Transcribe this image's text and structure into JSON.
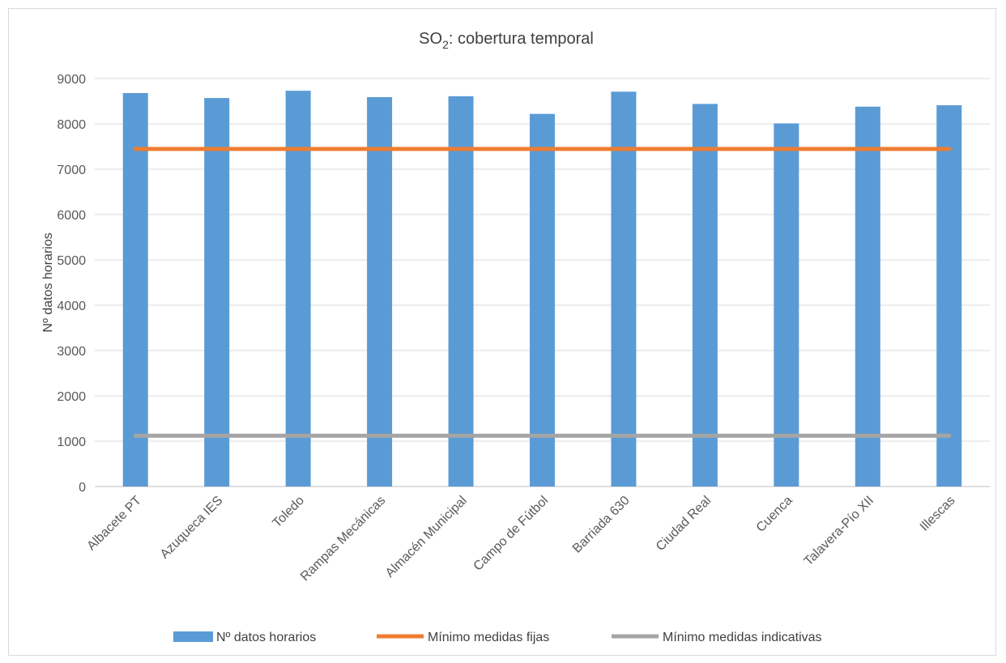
{
  "chart_data": {
    "type": "bar",
    "title": "SO",
    "title_subscript": "2",
    "title_suffix": ": cobertura temporal",
    "xlabel": "",
    "ylabel": "Nº datos horarios",
    "ylim": [
      0,
      9000
    ],
    "yticks": [
      0,
      1000,
      2000,
      3000,
      4000,
      5000,
      6000,
      7000,
      8000,
      9000
    ],
    "grid": true,
    "legend_position": "bottom",
    "categories": [
      "Albacete PT",
      "Azuqueca IES",
      "Toledo",
      "Rampas Mecánicas",
      "Almacén Municipal",
      "Campo de Fútbol",
      "Barriada 630",
      "Ciudad Real",
      "Cuenca",
      "Talavera-Pío XII",
      "Illescas"
    ],
    "series": [
      {
        "name": "Nº datos horarios",
        "kind": "bar",
        "color": "#5b9bd5",
        "values": [
          8680,
          8570,
          8730,
          8590,
          8610,
          8220,
          8710,
          8440,
          8010,
          8380,
          8410
        ]
      },
      {
        "name": "Mínimo medidas fijas",
        "kind": "line",
        "color": "#ed7d31",
        "values": [
          7446,
          7446,
          7446,
          7446,
          7446,
          7446,
          7446,
          7446,
          7446,
          7446,
          7446
        ]
      },
      {
        "name": "Mínimo medidas indicativas",
        "kind": "line",
        "color": "#a5a5a5",
        "values": [
          1120,
          1120,
          1120,
          1120,
          1120,
          1120,
          1120,
          1120,
          1120,
          1120,
          1120
        ]
      }
    ]
  }
}
